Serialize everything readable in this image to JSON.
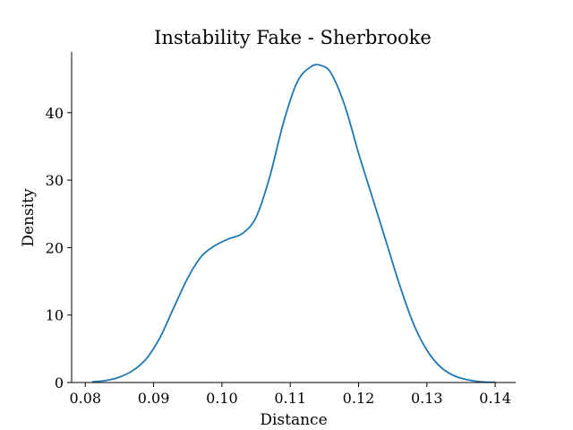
{
  "chart_data": {
    "type": "line",
    "title": "Instability Fake - Sherbrooke",
    "xlabel": "Distance",
    "ylabel": "Density",
    "xlim": [
      0.078,
      0.143
    ],
    "ylim": [
      0,
      49
    ],
    "xticks": [
      0.08,
      0.09,
      0.1,
      0.11,
      0.12,
      0.13,
      0.14
    ],
    "xtick_labels": [
      "0.08",
      "0.09",
      "0.10",
      "0.11",
      "0.12",
      "0.13",
      "0.14"
    ],
    "yticks": [
      0,
      10,
      20,
      30,
      40
    ],
    "ytick_labels": [
      "0",
      "10",
      "20",
      "30",
      "40"
    ],
    "grid": false,
    "series": [
      {
        "color": "#1f77b4",
        "x": [
          0.081,
          0.083,
          0.085,
          0.087,
          0.089,
          0.091,
          0.093,
          0.095,
          0.097,
          0.099,
          0.101,
          0.103,
          0.105,
          0.107,
          0.109,
          0.111,
          0.113,
          0.1145,
          0.116,
          0.118,
          0.12,
          0.122,
          0.124,
          0.126,
          0.128,
          0.13,
          0.132,
          0.134,
          0.136,
          0.138,
          0.14
        ],
        "y": [
          0.1,
          0.3,
          0.8,
          1.8,
          3.6,
          6.8,
          11.2,
          15.5,
          18.7,
          20.3,
          21.3,
          22.1,
          24.5,
          30.5,
          38.5,
          44.5,
          46.8,
          47.0,
          45.8,
          41.0,
          34.0,
          27.5,
          21.0,
          14.5,
          8.8,
          4.8,
          2.3,
          1.0,
          0.4,
          0.1,
          0.05
        ]
      }
    ]
  }
}
